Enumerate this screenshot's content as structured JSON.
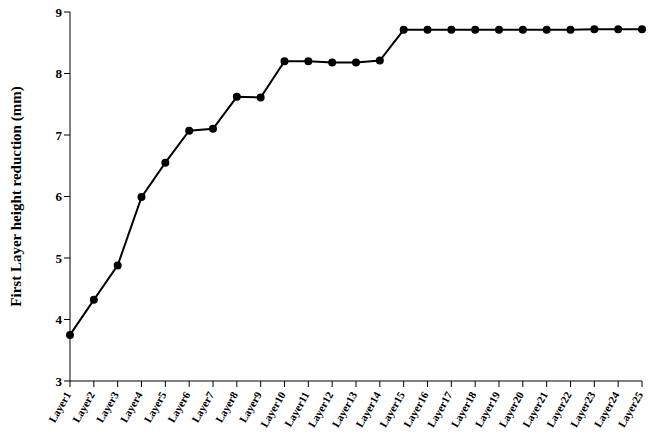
{
  "chart_data": {
    "type": "line",
    "y_label": "First Layer height reduction (mm)",
    "categories": [
      "Layer1",
      "Layer2",
      "Layer3",
      "Layer4",
      "Layer5",
      "Layer6",
      "Layer7",
      "Layer8",
      "Layer9",
      "Layer10",
      "Layer11",
      "Layer12",
      "Layer13",
      "Layer14",
      "Layer15",
      "Layer16",
      "Layer17",
      "Layer18",
      "Layer19",
      "Layer20",
      "Layer21",
      "Layer22",
      "Layer23",
      "Layer24",
      "Layer25"
    ],
    "values": [
      3.75,
      4.32,
      4.88,
      5.99,
      6.55,
      7.07,
      7.1,
      7.62,
      7.61,
      8.2,
      8.2,
      8.18,
      8.18,
      8.21,
      8.71,
      8.71,
      8.71,
      8.71,
      8.71,
      8.71,
      8.71,
      8.71,
      8.72,
      8.72,
      8.72
    ],
    "color": "#000000",
    "ylim": [
      3,
      9
    ],
    "yticks": [
      3,
      4,
      5,
      6,
      7,
      8,
      9
    ],
    "grid": false,
    "marker": "circle"
  }
}
